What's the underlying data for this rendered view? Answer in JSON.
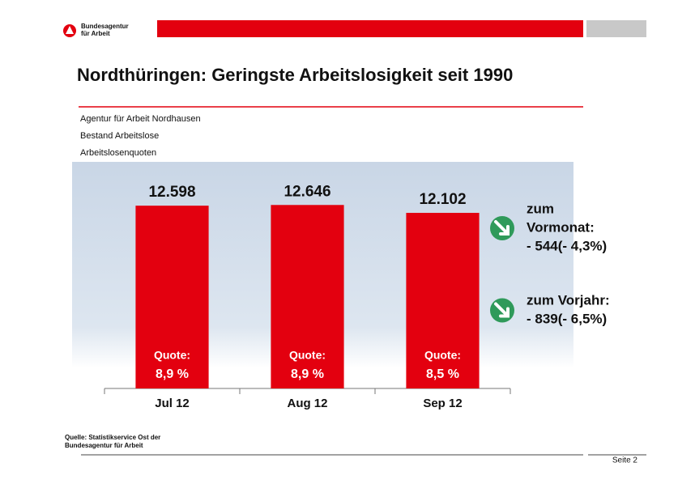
{
  "header": {
    "logo_lines": [
      "Bundesagentur",
      "für Arbeit"
    ]
  },
  "chart_data": {
    "type": "bar",
    "title": "Nordthüringen: Geringste Arbeitslosigkeit seit 1990",
    "subtitles": [
      "Agentur für Arbeit Nordhausen",
      "Bestand Arbeitslose",
      "Arbeitslosenquoten"
    ],
    "categories": [
      "Jul 12",
      "Aug 12",
      "Sep 12"
    ],
    "values": [
      12598,
      12646,
      12102
    ],
    "value_labels": [
      "12.598",
      "12.646",
      "12.102"
    ],
    "color": "#e3000f",
    "ylim": [
      0,
      14000
    ],
    "quotes": {
      "title": "Quote:",
      "values": [
        8.9,
        8.9,
        8.5
      ],
      "value_labels": [
        "8,9 %",
        "8,9 %",
        "8,5 %"
      ]
    },
    "annotations": [
      {
        "lines": [
          "zum",
          "Vormonat:",
          "- 544(- 4,3%)"
        ]
      },
      {
        "lines": [
          "zum Vorjahr:",
          "- 839(- 6,5%)"
        ]
      }
    ]
  },
  "footer": {
    "source_lines": [
      "Quelle: Statistikservice Ost der",
      "Bundesagentur für Arbeit"
    ],
    "page": "Seite 2"
  }
}
